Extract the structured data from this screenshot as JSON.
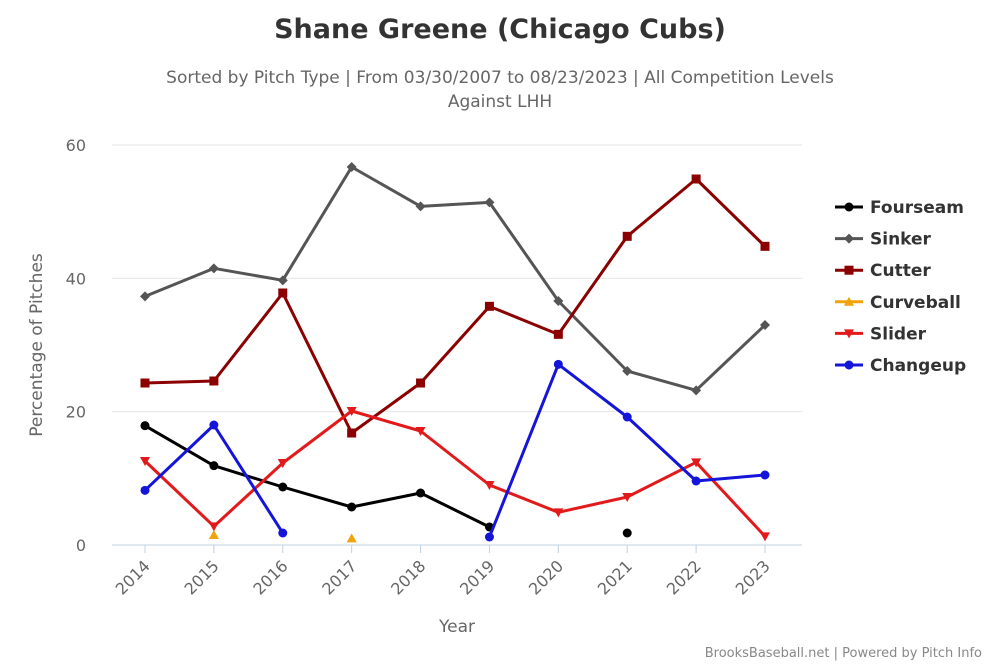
{
  "chart_data": {
    "type": "line",
    "title": "Shane Greene (Chicago Cubs)",
    "subtitle": [
      "Sorted by Pitch Type | From 03/30/2007 to 08/23/2023 | All Competition Levels",
      "Against LHH"
    ],
    "xlabel": "Year",
    "ylabel": "Percentage of Pitches",
    "ylim": [
      0,
      60
    ],
    "yticks": [
      0,
      20,
      40,
      60
    ],
    "grid": true,
    "legend": "right",
    "categories": [
      "2014",
      "2015",
      "2016",
      "2017",
      "2018",
      "2019",
      "2020",
      "2021",
      "2022",
      "2023"
    ],
    "series": [
      {
        "name": "Fourseam",
        "color": "#000000",
        "marker": "circle",
        "values": [
          17.9,
          11.9,
          8.7,
          5.7,
          7.8,
          2.7,
          null,
          1.8,
          null,
          null
        ]
      },
      {
        "name": "Sinker",
        "color": "#555555",
        "marker": "diamond",
        "values": [
          37.3,
          41.5,
          39.7,
          56.7,
          50.8,
          51.4,
          36.6,
          26.1,
          23.2,
          33.0
        ]
      },
      {
        "name": "Cutter",
        "color": "#8b0000",
        "marker": "square",
        "values": [
          24.3,
          24.6,
          37.8,
          16.8,
          24.3,
          35.8,
          31.6,
          46.3,
          54.9,
          44.8
        ]
      },
      {
        "name": "Curveball",
        "color": "#f0a30a",
        "marker": "triangle",
        "values": [
          null,
          1.5,
          null,
          1.0,
          null,
          null,
          null,
          null,
          null,
          null
        ]
      },
      {
        "name": "Slider",
        "color": "#e31a1c",
        "marker": "triangle-down",
        "values": [
          12.6,
          2.8,
          12.3,
          20.1,
          17.1,
          9.0,
          4.9,
          7.2,
          12.4,
          1.3
        ]
      },
      {
        "name": "Changeup",
        "color": "#1515d9",
        "marker": "circle",
        "values": [
          8.2,
          18.0,
          1.8,
          null,
          null,
          1.2,
          27.1,
          19.2,
          9.6,
          10.5
        ]
      }
    ]
  },
  "credit": "BrooksBaseball.net | Powered by Pitch Info"
}
